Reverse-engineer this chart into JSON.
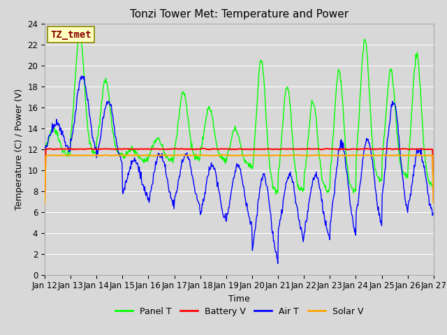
{
  "title": "Tonzi Tower Met: Temperature and Power",
  "xlabel": "Time",
  "ylabel": "Temperature (C) / Power (V)",
  "ylim": [
    0,
    24
  ],
  "yticks": [
    0,
    2,
    4,
    6,
    8,
    10,
    12,
    14,
    16,
    18,
    20,
    22,
    24
  ],
  "xtick_labels": [
    "Jan 12",
    "Jan 13",
    "Jan 14",
    "Jan 15",
    "Jan 16",
    "Jan 17",
    "Jan 18",
    "Jan 19",
    "Jan 20",
    "Jan 21",
    "Jan 22",
    "Jan 23",
    "Jan 24",
    "Jan 25",
    "Jan 26",
    "Jan 27"
  ],
  "bg_color": "#d8d8d8",
  "plot_bg_color": "#d8d8d8",
  "grid_color": "#ffffff",
  "panel_color": "#00ff00",
  "battery_color": "#ff0000",
  "air_color": "#0000ff",
  "solar_color": "#ffa500",
  "legend_labels": [
    "Panel T",
    "Battery V",
    "Air T",
    "Solar V"
  ],
  "annotation_text": "TZ_tmet",
  "annotation_bg": "#ffffc0",
  "annotation_border": "#888800",
  "annotation_text_color": "#880000",
  "title_fontsize": 11,
  "axis_fontsize": 9,
  "tick_fontsize": 8.5,
  "legend_fontsize": 9
}
